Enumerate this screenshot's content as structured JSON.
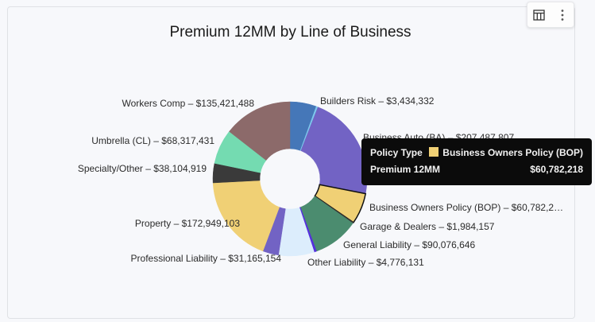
{
  "toolbar": {
    "table_view_icon": "table-icon",
    "more_icon": "more-vertical-icon"
  },
  "chart_data": {
    "type": "pie",
    "variant": "donut",
    "title": "Premium 12MM by Line of Business",
    "series_name": "Premium 12MM",
    "category_name": "Policy Type",
    "slices": [
      {
        "label": null,
        "value": 52000000,
        "color": "#4577b8",
        "display": null
      },
      {
        "label": "Builders Risk",
        "value": 3434332,
        "color": "#7ec8ec",
        "display": "Builders Risk – $3,434,332"
      },
      {
        "label": "Business Auto (BA)",
        "value": 207487807,
        "color": "#7263c4",
        "display": "Business Auto (BA) – $207,487,807"
      },
      {
        "label": "Business Owners Policy (BOP)",
        "value": 60782218,
        "color": "#f0d075",
        "display": "Business Owners Policy (BOP) – $60,782,2…",
        "highlighted": true
      },
      {
        "label": "Garage & Dealers",
        "value": 1984157,
        "color": "#3a3a3a",
        "display": "Garage & Dealers – $1,984,157"
      },
      {
        "label": "General Liability",
        "value": 90076646,
        "color": "#4b8c6f",
        "display": "General Liability – $90,076,646"
      },
      {
        "label": "Other Liability",
        "value": 4776131,
        "color": "#5530dc",
        "display": "Other Liability  – $4,776,131"
      },
      {
        "label": null,
        "value": 70000000,
        "color": "#dcedfc",
        "display": null
      },
      {
        "label": "Professional Liability",
        "value": 31165154,
        "color": "#7263c4",
        "display": "Professional Liability – $31,165,154"
      },
      {
        "label": "Property",
        "value": 172949103,
        "color": "#f0d075",
        "display": "Property – $172,949,103"
      },
      {
        "label": "Specialty/Other",
        "value": 38104919,
        "color": "#3a3a3a",
        "display": "Specialty/Other – $38,104,919"
      },
      {
        "label": "Umbrella (CL)",
        "value": 68317431,
        "color": "#74dbb1",
        "display": "Umbrella (CL) – $68,317,431"
      },
      {
        "label": "Workers Comp",
        "value": 135421488,
        "color": "#8c6a6a",
        "display": "Workers Comp – $135,421,488"
      }
    ]
  },
  "tooltip": {
    "row1_label": "Policy Type",
    "row1_value": "Business Owners Policy (BOP)",
    "row1_swatch_color": "#f0d075",
    "row2_label": "Premium 12MM",
    "row2_value": "$60,782,218"
  }
}
